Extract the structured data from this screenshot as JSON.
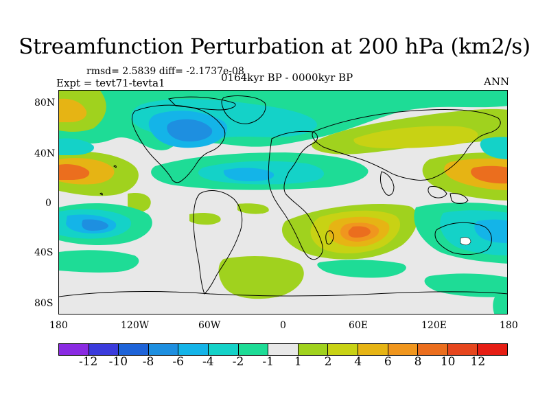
{
  "title": "Streamfunction Perturbation at 200 hPa (km2/s)",
  "stats": "rmsd= 2.5839 diff= -2.1737e-08",
  "expt": "Expt = tevt71-tevta1",
  "period": "0164kyr BP - 0000kyr BP",
  "season": "ANN",
  "map": {
    "lat_labels": [
      "80N",
      "40N",
      "0",
      "40S",
      "80S"
    ],
    "lon_labels": [
      "180",
      "120W",
      "60W",
      "0",
      "60E",
      "120E",
      "180"
    ]
  },
  "colorbar": {
    "colors": [
      "#8a2be2",
      "#3b3bdc",
      "#1e63d8",
      "#1e8fe0",
      "#14b4e8",
      "#14d2c8",
      "#1edc96",
      "#e8e8e8",
      "#a0d21e",
      "#c8d214",
      "#e6b414",
      "#f0961e",
      "#eb6e1e",
      "#e6461e",
      "#e61e14"
    ],
    "labels": [
      "-12",
      "-10",
      "-8",
      "-6",
      "-4",
      "-2",
      "-1",
      "1",
      "2",
      "4",
      "6",
      "8",
      "10",
      "12"
    ]
  }
}
